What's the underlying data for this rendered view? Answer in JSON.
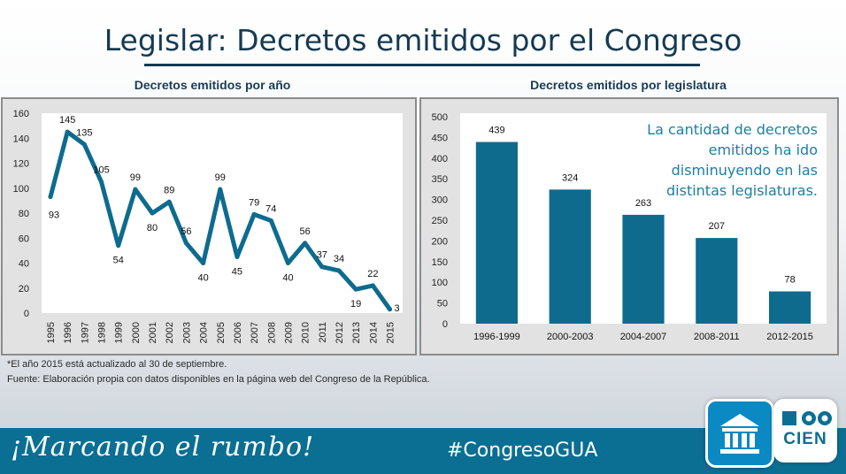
{
  "header": {
    "title": "Legislar: Decretos emitidos por el Congreso"
  },
  "chart_data": [
    {
      "type": "line",
      "title": "Decretos emitidos por año",
      "x": [
        "1995",
        "1996",
        "1997",
        "1998",
        "1999",
        "2000",
        "2001",
        "2002",
        "2003",
        "2004",
        "2005",
        "2006",
        "2007",
        "2008",
        "2009",
        "2010",
        "2011",
        "2012",
        "2013",
        "2014",
        "2015"
      ],
      "values": [
        93,
        145,
        135,
        105,
        54,
        99,
        80,
        89,
        56,
        40,
        99,
        45,
        79,
        74,
        40,
        56,
        37,
        34,
        19,
        22,
        3
      ],
      "labels": [
        "93",
        "145",
        "135",
        "105",
        "54",
        "99",
        "80",
        "89",
        "56",
        "40",
        "99",
        "45",
        "79",
        "74",
        "40",
        "56",
        "37",
        "34",
        "19",
        "22",
        "3"
      ],
      "y_ticks": [
        "0",
        "20",
        "40",
        "60",
        "80",
        "100",
        "120",
        "140",
        "160"
      ],
      "ylim": [
        0,
        160
      ],
      "color": "#0e6b8e"
    },
    {
      "type": "bar",
      "title": "Decretos emitidos por legislatura",
      "categories": [
        "1996-1999",
        "2000-2003",
        "2004-2007",
        "2008-2011",
        "2012-2015"
      ],
      "values": [
        439,
        324,
        263,
        207,
        78
      ],
      "labels": [
        "439",
        "324",
        "263",
        "207",
        "78"
      ],
      "y_ticks": [
        "0",
        "50",
        "100",
        "150",
        "200",
        "250",
        "300",
        "350",
        "400",
        "450",
        "500"
      ],
      "ylim": [
        0,
        500
      ],
      "color": "#0e6b8e",
      "annotation": [
        "La cantidad de decretos",
        "emitidos ha ido",
        "disminuyendo en las",
        "distintas legislaturas."
      ]
    }
  ],
  "notes": {
    "line1": "*El año 2015 está actualizado al 30 de septiembre.",
    "line2": "Fuente: Elaboración propia con datos disponibles en la página web del Congreso de la República."
  },
  "footer": {
    "slogan": "¡Marcando el rumbo!",
    "hashtag": "#CongresoGUA",
    "cien_logo_text": "CIEN"
  },
  "colors": {
    "title": "#163a52",
    "accent": "#0a6f92",
    "series": "#0e6b8e",
    "annotation": "#1c7fa3"
  }
}
